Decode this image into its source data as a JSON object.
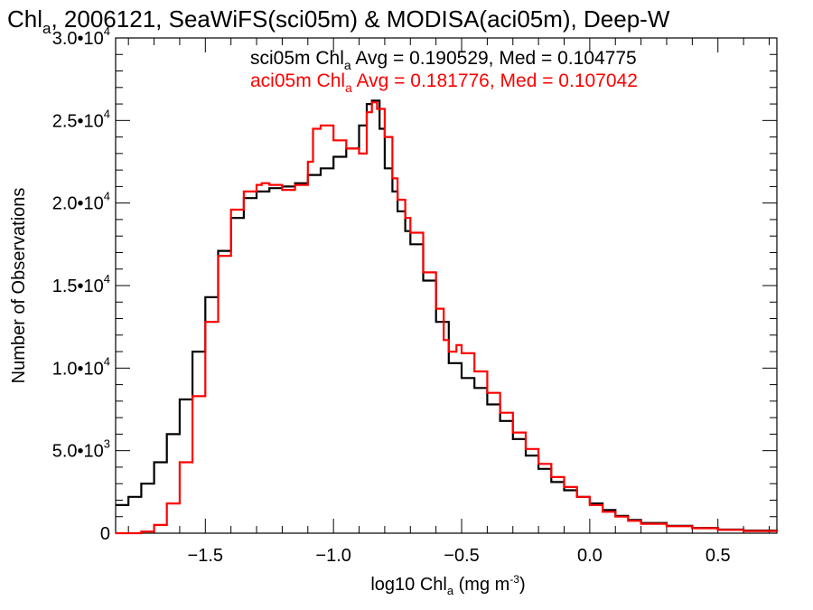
{
  "chart_data": {
    "type": "line",
    "step": true,
    "title": {
      "prefix": "Chl",
      "sub": "a",
      "rest": ", 2006121, SeaWiFS(sci05m) & MODISA(aci05m), Deep-W"
    },
    "xlabel": {
      "prefix": "log10 Chl",
      "sub": "a",
      "mid": " (mg m",
      "sup": "-3",
      "suffix": ")"
    },
    "ylabel": "Number of Observations",
    "xlim": [
      -1.85,
      0.73
    ],
    "ylim": [
      0,
      30000
    ],
    "x_ticks": [
      {
        "value": -1.5,
        "label": "−1.5"
      },
      {
        "value": -1.0,
        "label": "−1.0"
      },
      {
        "value": -0.5,
        "label": "−0.5"
      },
      {
        "value": 0.0,
        "label": "0.0"
      },
      {
        "value": 0.5,
        "label": "0.5"
      }
    ],
    "y_ticks": [
      {
        "value": 0,
        "mant": "0",
        "exp": ""
      },
      {
        "value": 5000,
        "mant": "5.0•10",
        "exp": "3"
      },
      {
        "value": 10000,
        "mant": "1.0•10",
        "exp": "4"
      },
      {
        "value": 15000,
        "mant": "1.5•10",
        "exp": "4"
      },
      {
        "value": 20000,
        "mant": "2.0•10",
        "exp": "4"
      },
      {
        "value": 25000,
        "mant": "2.5•10",
        "exp": "4"
      },
      {
        "value": 30000,
        "mant": "3.0•10",
        "exp": "4"
      }
    ],
    "annotations": [
      {
        "pre": "sci05m Chl",
        "sub": "a",
        "post": " Avg = 0.190529, Med = 0.104775",
        "color": "#000000"
      },
      {
        "pre": "aci05m Chl",
        "sub": "a",
        "post": " Avg = 0.181776, Med = 0.107042",
        "color": "#ff0000"
      }
    ],
    "series": [
      {
        "color": "#000000",
        "x": [
          -1.85,
          -1.8,
          -1.75,
          -1.7,
          -1.65,
          -1.6,
          -1.55,
          -1.5,
          -1.45,
          -1.4,
          -1.35,
          -1.3,
          -1.25,
          -1.2,
          -1.15,
          -1.1,
          -1.05,
          -1.0,
          -0.95,
          -0.9,
          -0.87,
          -0.85,
          -0.82,
          -0.8,
          -0.77,
          -0.75,
          -0.72,
          -0.7,
          -0.65,
          -0.6,
          -0.55,
          -0.5,
          -0.45,
          -0.4,
          -0.35,
          -0.3,
          -0.25,
          -0.2,
          -0.15,
          -0.1,
          -0.05,
          0.0,
          0.05,
          0.1,
          0.15,
          0.2,
          0.3,
          0.4,
          0.5,
          0.6,
          0.73
        ],
        "y": [
          1700,
          2200,
          3000,
          4300,
          6000,
          8100,
          11000,
          14300,
          17100,
          19100,
          20300,
          20700,
          20900,
          21000,
          21200,
          21700,
          22100,
          22800,
          23300,
          24700,
          26000,
          26200,
          24500,
          22100,
          20700,
          19500,
          18300,
          17500,
          15300,
          12800,
          10300,
          9400,
          8800,
          7800,
          6800,
          5700,
          4700,
          3900,
          3100,
          2600,
          2200,
          1800,
          1400,
          1050,
          800,
          620,
          450,
          320,
          220,
          160,
          100
        ]
      },
      {
        "color": "#ff0000",
        "x": [
          -1.85,
          -1.8,
          -1.75,
          -1.7,
          -1.65,
          -1.6,
          -1.55,
          -1.5,
          -1.45,
          -1.4,
          -1.35,
          -1.3,
          -1.28,
          -1.25,
          -1.2,
          -1.15,
          -1.1,
          -1.08,
          -1.05,
          -1.0,
          -0.95,
          -0.9,
          -0.87,
          -0.85,
          -0.83,
          -0.8,
          -0.77,
          -0.75,
          -0.72,
          -0.7,
          -0.65,
          -0.6,
          -0.57,
          -0.55,
          -0.52,
          -0.5,
          -0.45,
          -0.4,
          -0.35,
          -0.3,
          -0.25,
          -0.2,
          -0.15,
          -0.1,
          -0.05,
          0.0,
          0.05,
          0.1,
          0.15,
          0.2,
          0.3,
          0.4,
          0.5,
          0.6,
          0.73
        ],
        "y": [
          0,
          0,
          100,
          500,
          1800,
          4300,
          8300,
          12800,
          16800,
          19600,
          20700,
          21100,
          21200,
          21100,
          20800,
          21100,
          22500,
          24500,
          24700,
          23800,
          23300,
          23000,
          25500,
          26100,
          25700,
          24000,
          21500,
          20200,
          19100,
          18200,
          15800,
          13600,
          11700,
          11000,
          11400,
          10900,
          9800,
          8500,
          7300,
          6100,
          5100,
          4200,
          3400,
          2800,
          2200,
          1700,
          1300,
          1000,
          750,
          570,
          420,
          300,
          200,
          130,
          80
        ]
      }
    ]
  }
}
